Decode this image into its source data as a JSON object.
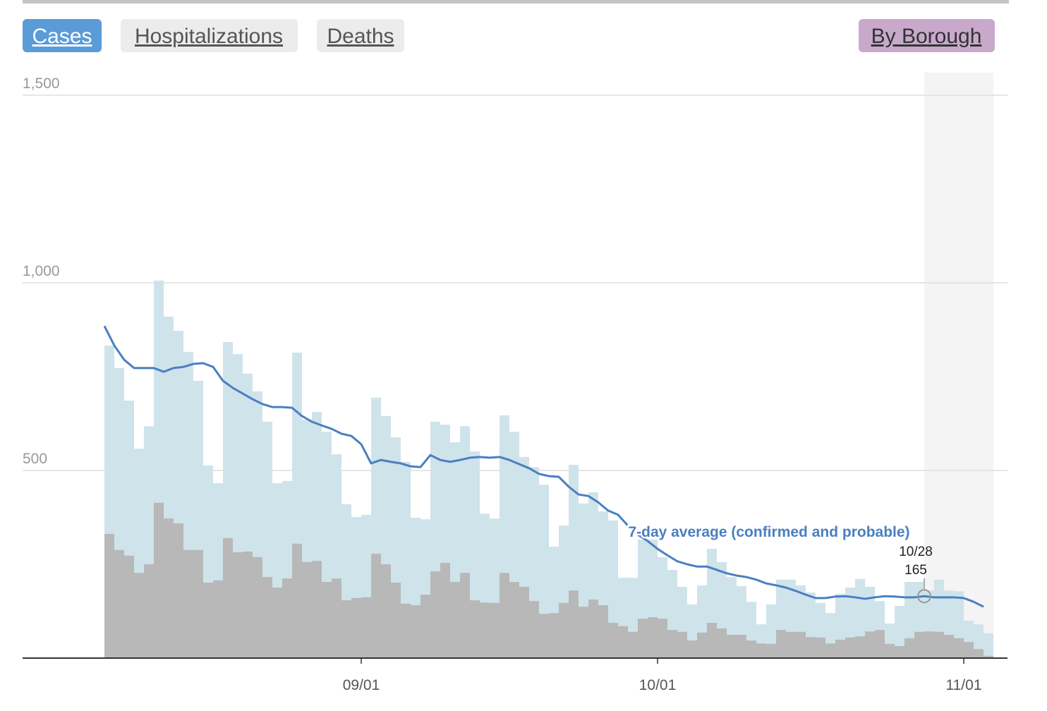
{
  "controls": {
    "tabs": [
      "Cases",
      "Hospitalizations",
      "Deaths"
    ],
    "borough_button": "By Borough"
  },
  "chart_data": {
    "type": "bar",
    "categories": [
      "08/06",
      "08/07",
      "08/08",
      "08/09",
      "08/10",
      "08/11",
      "08/12",
      "08/13",
      "08/14",
      "08/15",
      "08/16",
      "08/17",
      "08/18",
      "08/19",
      "08/20",
      "08/21",
      "08/22",
      "08/23",
      "08/24",
      "08/25",
      "08/26",
      "08/27",
      "08/28",
      "08/29",
      "08/30",
      "08/31",
      "09/01",
      "09/02",
      "09/03",
      "09/04",
      "09/05",
      "09/06",
      "09/07",
      "09/08",
      "09/09",
      "09/10",
      "09/11",
      "09/12",
      "09/13",
      "09/14",
      "09/15",
      "09/16",
      "09/17",
      "09/18",
      "09/19",
      "09/20",
      "09/21",
      "09/22",
      "09/23",
      "09/24",
      "09/25",
      "09/26",
      "09/27",
      "09/28",
      "09/29",
      "09/30",
      "10/01",
      "10/02",
      "10/03",
      "10/04",
      "10/05",
      "10/06",
      "10/07",
      "10/08",
      "10/09",
      "10/10",
      "10/11",
      "10/12",
      "10/13",
      "10/14",
      "10/15",
      "10/16",
      "10/17",
      "10/18",
      "10/19",
      "10/20",
      "10/21",
      "10/22",
      "10/23",
      "10/24",
      "10/25",
      "10/26",
      "10/27",
      "10/28",
      "10/29",
      "10/30",
      "10/31",
      "11/01",
      "11/02",
      "11/03"
    ],
    "series": [
      {
        "type": "bar",
        "color": "#cfe3ea",
        "values": [
          833,
          773,
          686,
          558,
          618,
          1006,
          910,
          872,
          816,
          739,
          513,
          466,
          842,
          810,
          758,
          711,
          630,
          466,
          472,
          814,
          635,
          656,
          603,
          543,
          410,
          376,
          382,
          694,
          645,
          588,
          523,
          374,
          370,
          630,
          622,
          575,
          618,
          551,
          385,
          372,
          647,
          603,
          536,
          509,
          462,
          297,
          353,
          515,
          412,
          442,
          391,
          367,
          214,
          214,
          316,
          316,
          269,
          235,
          190,
          143,
          194,
          291,
          256,
          216,
          192,
          150,
          90,
          143,
          209,
          209,
          194,
          175,
          147,
          120,
          171,
          188,
          211,
          190,
          152,
          92,
          139,
          203,
          203,
          180,
          209,
          180,
          178,
          100,
          90,
          66
        ]
      },
      {
        "type": "bar",
        "color": "#b8b8b8",
        "values": [
          331,
          288,
          273,
          227,
          250,
          414,
          372,
          359,
          288,
          288,
          201,
          207,
          320,
          282,
          284,
          269,
          216,
          188,
          212,
          305,
          256,
          259,
          203,
          212,
          154,
          160,
          162,
          278,
          250,
          201,
          145,
          141,
          169,
          231,
          254,
          203,
          227,
          154,
          148,
          147,
          227,
          203,
          190,
          152,
          118,
          120,
          147,
          180,
          137,
          156,
          141,
          94,
          85,
          70,
          105,
          109,
          105,
          75,
          70,
          47,
          68,
          94,
          79,
          62,
          62,
          47,
          39,
          38,
          75,
          70,
          70,
          56,
          55,
          39,
          49,
          55,
          58,
          71,
          75,
          38,
          32,
          53,
          70,
          71,
          70,
          62,
          53,
          43,
          24,
          6
        ]
      },
      {
        "type": "line",
        "name": "7-day average (confirmed and probable)",
        "color": "#4a7fc1",
        "values": [
          885,
          833,
          795,
          773,
          773,
          773,
          763,
          773,
          776,
          784,
          786,
          776,
          739,
          720,
          705,
          690,
          677,
          669,
          669,
          667,
          645,
          630,
          620,
          611,
          598,
          592,
          570,
          519,
          528,
          523,
          519,
          511,
          509,
          541,
          528,
          523,
          528,
          534,
          536,
          534,
          536,
          528,
          517,
          506,
          491,
          485,
          483,
          457,
          436,
          432,
          415,
          393,
          382,
          353,
          329,
          312,
          291,
          274,
          258,
          250,
          244,
          244,
          235,
          226,
          220,
          216,
          209,
          199,
          194,
          188,
          179,
          169,
          160,
          160,
          164,
          165,
          162,
          158,
          162,
          165,
          164,
          162,
          162,
          165,
          162,
          162,
          162,
          160,
          150,
          137
        ]
      }
    ],
    "tooltip": {
      "date": "10/28",
      "value": 165
    },
    "ylim": [
      0,
      1500
    ],
    "yticks": [
      {
        "value": 500,
        "label": "500"
      },
      {
        "value": 1000,
        "label": "1,000"
      },
      {
        "value": 1500,
        "label": "1,500"
      }
    ],
    "xticks": [
      "09/01",
      "10/01",
      "11/01"
    ],
    "grid": true
  }
}
